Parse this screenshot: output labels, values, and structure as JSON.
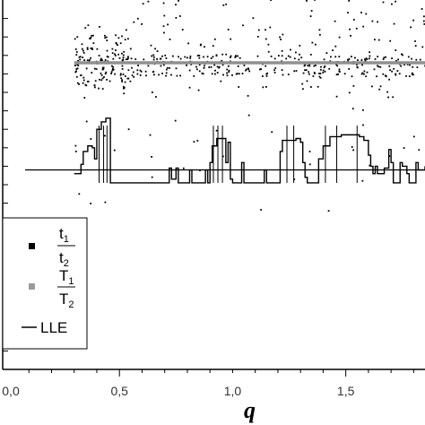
{
  "chart_data": {
    "type": "scatter",
    "xlabel": "q",
    "ylabel": "",
    "xlim": [
      0.0,
      1.85
    ],
    "x_ticks": [
      "0,0",
      "0,5",
      "1,0",
      "1,5"
    ],
    "x_tick_values": [
      0.0,
      0.5,
      1.0,
      1.5
    ],
    "ylim": [
      0,
      20
    ],
    "grid": false,
    "legend_position": "bottom-left",
    "legend": [
      {
        "marker": "black-square",
        "numerator": "t",
        "numerator_sub": "1",
        "denominator": "t",
        "denominator_sub": "2"
      },
      {
        "marker": "gray-square",
        "numerator": "T",
        "numerator_sub": "1",
        "denominator": "T",
        "denominator_sub": "2"
      },
      {
        "marker": "line",
        "label": "LLE"
      }
    ],
    "series": [
      {
        "name": "t1/t2",
        "style": "scatter",
        "color": "#000000",
        "x_range": [
          0.3,
          1.85
        ],
        "band_center": 16.5,
        "spread_y": [
          8,
          20.5
        ]
      },
      {
        "name": "T1/T2",
        "style": "line",
        "color": "#909090",
        "x": [
          0.3,
          1.85
        ],
        "y": [
          16.6,
          16.6
        ]
      },
      {
        "name": "LLE",
        "style": "line",
        "color": "#000000",
        "baseline": 10.8,
        "low": 10.1,
        "points": [
          [
            0.3,
            10.6
          ],
          [
            0.32,
            10.6
          ],
          [
            0.33,
            11.1
          ],
          [
            0.34,
            11.8
          ],
          [
            0.36,
            12.1
          ],
          [
            0.38,
            12.0
          ],
          [
            0.39,
            11.4
          ],
          [
            0.4,
            13.0
          ],
          [
            0.42,
            13.4
          ],
          [
            0.44,
            13.6
          ],
          [
            0.45,
            13.6
          ],
          [
            0.46,
            10.1
          ],
          [
            0.6,
            10.1
          ],
          [
            0.71,
            10.1
          ],
          [
            0.72,
            10.9
          ],
          [
            0.73,
            10.3
          ],
          [
            0.75,
            10.9
          ],
          [
            0.76,
            10.1
          ],
          [
            0.8,
            10.1
          ],
          [
            0.81,
            10.8
          ],
          [
            0.82,
            10.1
          ],
          [
            0.87,
            10.1
          ],
          [
            0.88,
            10.8
          ],
          [
            0.89,
            10.1
          ],
          [
            0.9,
            11.2
          ],
          [
            0.91,
            12.1
          ],
          [
            0.93,
            12.5
          ],
          [
            0.96,
            12.5
          ],
          [
            0.97,
            11.2
          ],
          [
            0.98,
            12.3
          ],
          [
            0.99,
            10.3
          ],
          [
            1.0,
            10.1
          ],
          [
            1.03,
            10.1
          ],
          [
            1.04,
            11.2
          ],
          [
            1.05,
            10.1
          ],
          [
            1.13,
            10.1
          ],
          [
            1.14,
            10.8
          ],
          [
            1.15,
            10.1
          ],
          [
            1.2,
            10.1
          ],
          [
            1.21,
            11.8
          ],
          [
            1.22,
            12.4
          ],
          [
            1.28,
            12.5
          ],
          [
            1.3,
            12.3
          ],
          [
            1.31,
            11.2
          ],
          [
            1.32,
            10.4
          ],
          [
            1.33,
            10.1
          ],
          [
            1.37,
            10.1
          ],
          [
            1.38,
            11.4
          ],
          [
            1.4,
            12.1
          ],
          [
            1.43,
            12.6
          ],
          [
            1.48,
            12.7
          ],
          [
            1.52,
            12.7
          ],
          [
            1.56,
            12.6
          ],
          [
            1.58,
            12.4
          ],
          [
            1.6,
            11.6
          ],
          [
            1.61,
            11.0
          ],
          [
            1.62,
            10.6
          ],
          [
            1.63,
            11.0
          ],
          [
            1.64,
            10.6
          ],
          [
            1.67,
            10.9
          ],
          [
            1.69,
            11.9
          ],
          [
            1.7,
            11.2
          ],
          [
            1.71,
            10.1
          ],
          [
            1.73,
            10.1
          ],
          [
            1.74,
            11.2
          ],
          [
            1.75,
            11.0
          ],
          [
            1.77,
            10.6
          ],
          [
            1.78,
            10.1
          ],
          [
            1.81,
            11.2
          ],
          [
            1.82,
            10.8
          ],
          [
            1.85,
            11.0
          ]
        ]
      }
    ]
  }
}
